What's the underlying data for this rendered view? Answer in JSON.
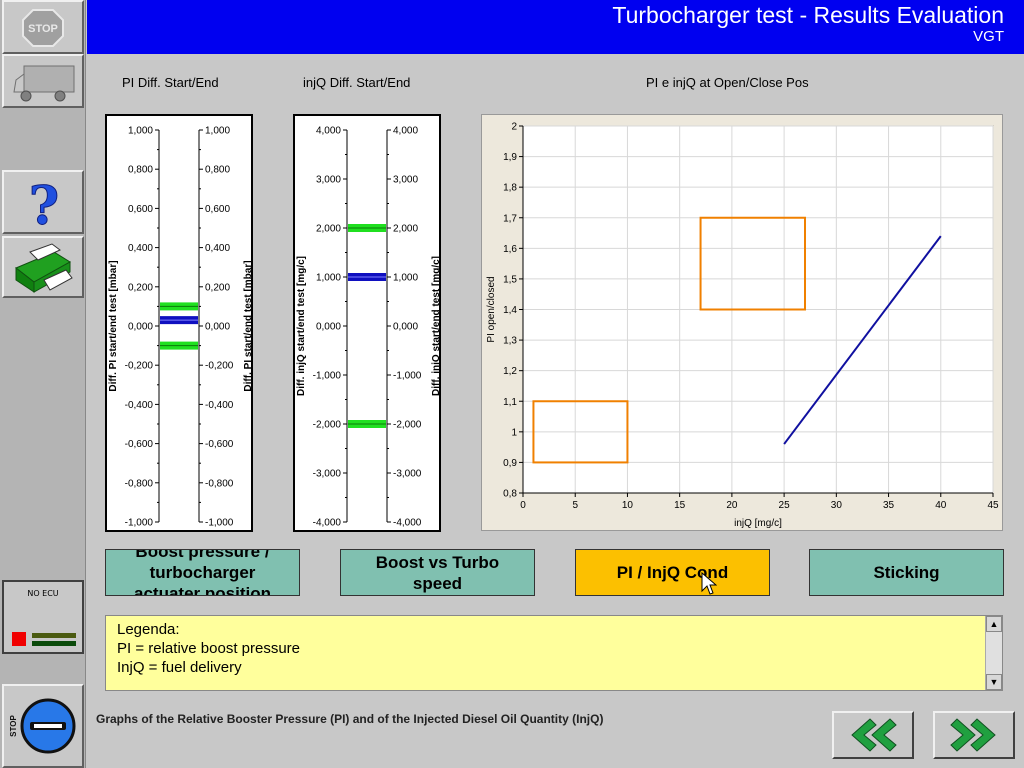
{
  "header": {
    "title": "Turbocharger test - Results Evaluation",
    "subtitle": "VGT"
  },
  "sidebar": {
    "stop_top_label": "STOP",
    "ecu_label": "NO ECU",
    "stop_bottom_label": "STOP",
    "colors": {
      "ecu_red": "#f00000",
      "help": "#2050e0",
      "printer": "#20a020"
    }
  },
  "gauges": {
    "pi": {
      "title": "PI Diff. Start/End",
      "axis_label_left": "Diff. PI start/end test [mbar]",
      "axis_label_right": "Diff. PI start/end test [mbar]",
      "ticks": [
        "1,000",
        "0,800",
        "0,600",
        "0,400",
        "0,200",
        "0,000",
        "-0,200",
        "-0,400",
        "-0,600",
        "-0,800",
        "-1,000"
      ],
      "tick_values": [
        1,
        0.8,
        0.6,
        0.4,
        0.2,
        0,
        -0.2,
        -0.4,
        -0.6,
        -0.8,
        -1
      ],
      "range": [
        -1,
        1
      ],
      "green_limits": [
        0.1,
        -0.1
      ],
      "blue_value": 0.03
    },
    "injq": {
      "title": "injQ Diff. Start/End",
      "axis_label_left": "Diff. injQ start/end test [mg/c]",
      "axis_label_right": "Diff. injQ start/end test [mg/c]",
      "ticks": [
        "4,000",
        "3,000",
        "2,000",
        "1,000",
        "0,000",
        "-1,000",
        "-2,000",
        "-3,000",
        "-4,000"
      ],
      "tick_values": [
        4,
        3,
        2,
        1,
        0,
        -1,
        -2,
        -3,
        -4
      ],
      "range": [
        -4,
        4
      ],
      "green_limits": [
        2,
        -2
      ],
      "blue_value": 1
    }
  },
  "chart_data": {
    "type": "line",
    "title": "PI e injQ at Open/Close Pos",
    "xlabel": "injQ [mg/c]",
    "ylabel": "PI open/closed",
    "xlim": [
      0,
      45
    ],
    "ylim": [
      0.8,
      2
    ],
    "x_ticks": [
      "0",
      "5",
      "10",
      "15",
      "20",
      "25",
      "30",
      "35",
      "40",
      "45"
    ],
    "y_ticks": [
      "0,8",
      "0,9",
      "1",
      "1,1",
      "1,2",
      "1,3",
      "1,4",
      "1,5",
      "1,6",
      "1,7",
      "1,8",
      "1,9",
      "2"
    ],
    "grid": true,
    "series": [
      {
        "x": [
          25,
          40
        ],
        "y": [
          0.96,
          1.64
        ],
        "color": "#1010a0"
      }
    ],
    "tolerance_boxes": [
      {
        "x": [
          1,
          10
        ],
        "y": [
          0.9,
          1.1
        ],
        "color": "#f08000"
      },
      {
        "x": [
          17,
          27
        ],
        "y": [
          1.4,
          1.7
        ],
        "color": "#f08000"
      }
    ]
  },
  "tabs": [
    {
      "label": "Boost pressure /\nturbocharger\nactuater position",
      "active": false
    },
    {
      "label": "Boost vs Turbo\nspeed",
      "active": false
    },
    {
      "label": "PI / InjQ Cond",
      "active": true
    },
    {
      "label": "Sticking",
      "active": false
    }
  ],
  "legend": {
    "line1": "Legenda:",
    "line2": "PI = relative boost pressure",
    "line3": "InjQ = fuel delivery"
  },
  "description": "Graphs of the Relative Booster Pressure (PI) and of the Injected Diesel Oil Quantity (InjQ)"
}
